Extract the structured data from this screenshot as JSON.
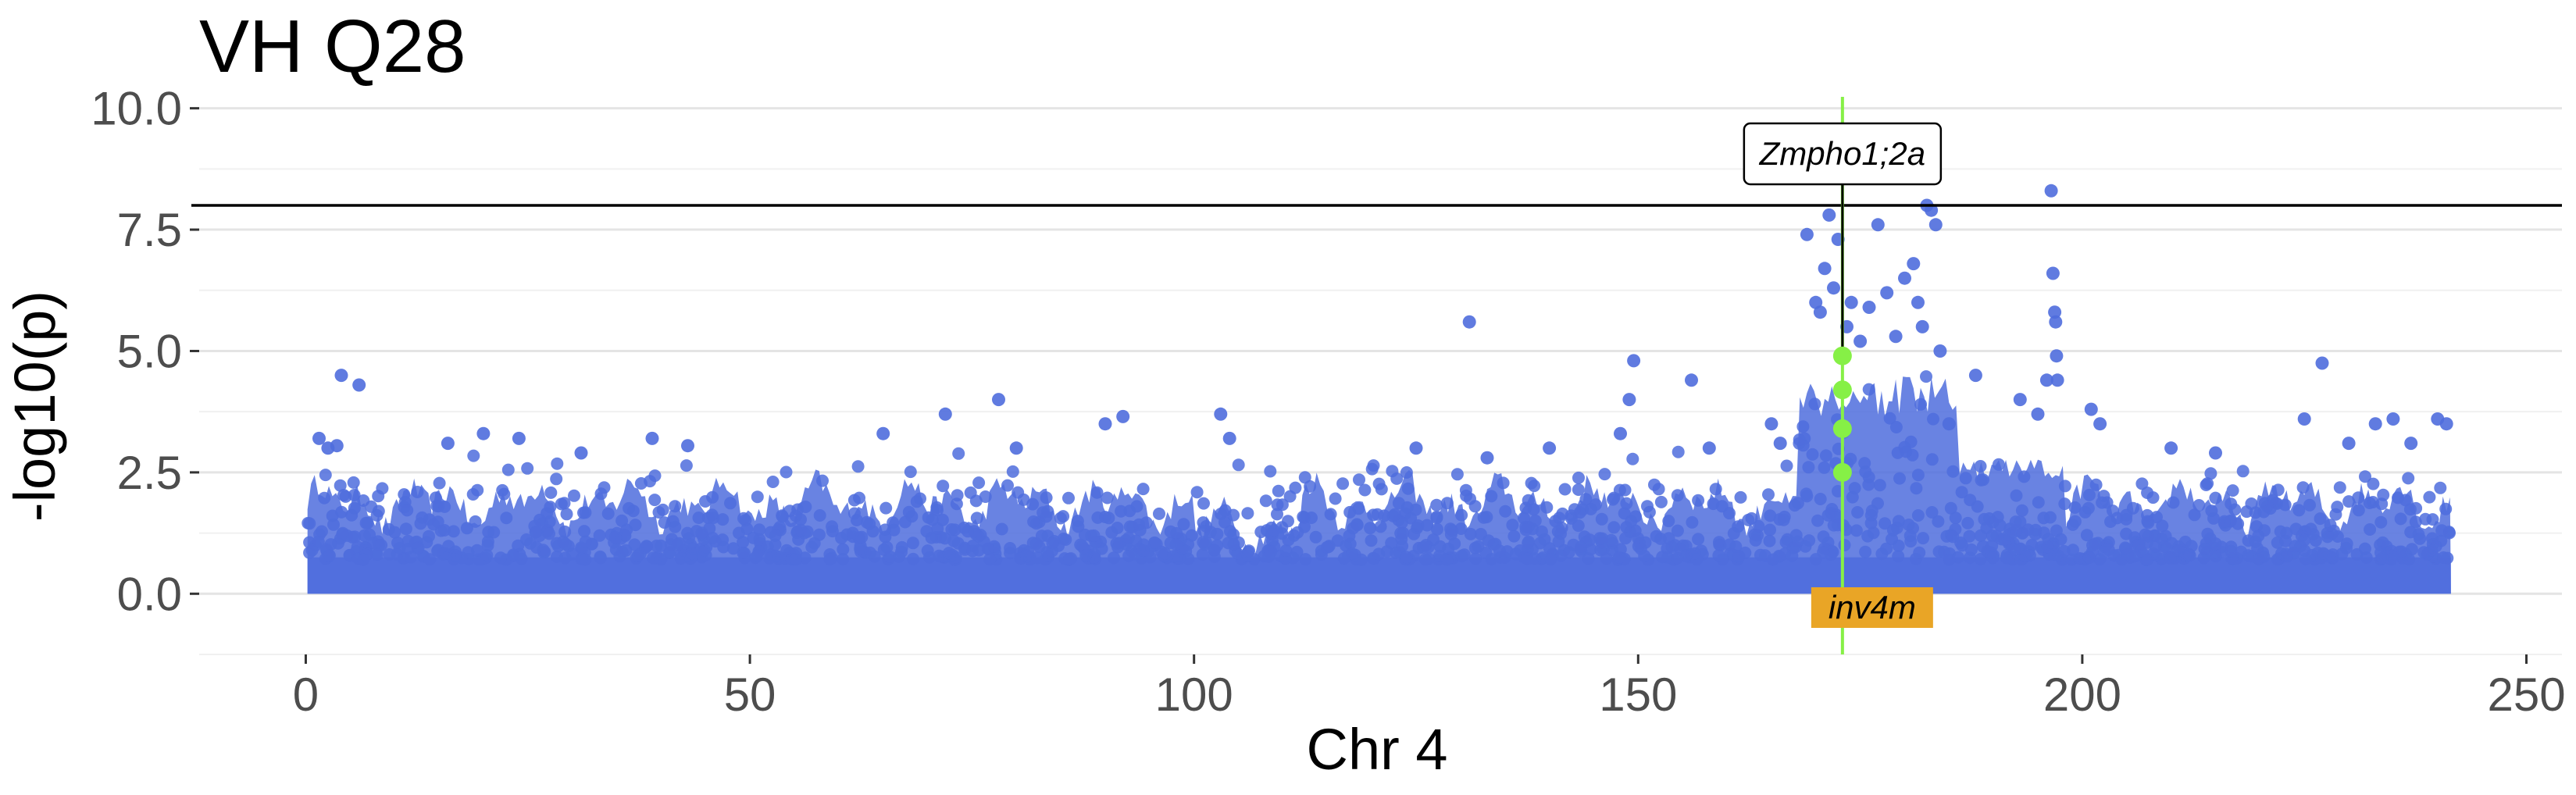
{
  "chart_data": {
    "type": "scatter",
    "title": "VH Q28",
    "xlabel": "Chr 4",
    "ylabel": "-log10(p)",
    "xlim": [
      -12,
      254
    ],
    "ylim": [
      -1.25,
      10.3
    ],
    "x_ticks": [
      0,
      50,
      100,
      150,
      200,
      250
    ],
    "y_ticks": [
      0.0,
      2.5,
      5.0,
      7.5,
      10.0
    ],
    "x_tick_labels": [
      "0",
      "50",
      "100",
      "150",
      "200",
      "250"
    ],
    "y_tick_labels": [
      "0.0",
      "2.5",
      "5.0",
      "7.5",
      "10.0"
    ],
    "grid": true,
    "threshold": 8.0,
    "point_color": "#4f6ddd",
    "highlight_color": "#86f046",
    "region": {
      "label": "inv4m",
      "x": 173,
      "color": "#e9a526"
    },
    "gene_label": {
      "label": "Zmpho1;2a",
      "x": 173,
      "y": 8.0
    },
    "highlighted_points": [
      {
        "x": 173,
        "y": 4.9
      },
      {
        "x": 173,
        "y": 4.2
      },
      {
        "x": 173,
        "y": 3.4
      },
      {
        "x": 173,
        "y": 2.5
      }
    ],
    "points": [
      [
        1.5,
        3.2
      ],
      [
        2.5,
        3.0
      ],
      [
        3.5,
        3.05
      ],
      [
        4.0,
        4.5
      ],
      [
        6.0,
        4.3
      ],
      [
        16.0,
        3.1
      ],
      [
        20.0,
        3.3
      ],
      [
        24.0,
        3.2
      ],
      [
        31.0,
        2.9
      ],
      [
        39.0,
        3.2
      ],
      [
        43.0,
        3.05
      ],
      [
        65.0,
        3.3
      ],
      [
        72.0,
        3.7
      ],
      [
        78.0,
        4.0
      ],
      [
        80.0,
        3.0
      ],
      [
        90.0,
        3.5
      ],
      [
        92.0,
        3.65
      ],
      [
        103.0,
        3.7
      ],
      [
        104.0,
        3.2
      ],
      [
        125.0,
        3.0
      ],
      [
        131.0,
        5.6
      ],
      [
        133.0,
        2.8
      ],
      [
        140.0,
        3.0
      ],
      [
        148.0,
        3.3
      ],
      [
        149.0,
        4.0
      ],
      [
        149.5,
        4.8
      ],
      [
        156.0,
        4.4
      ],
      [
        158.0,
        3.0
      ],
      [
        165.0,
        3.5
      ],
      [
        166.0,
        3.1
      ],
      [
        169.0,
        7.4
      ],
      [
        170.0,
        6.0
      ],
      [
        170.5,
        5.8
      ],
      [
        171.0,
        6.7
      ],
      [
        171.5,
        7.8
      ],
      [
        172.0,
        6.3
      ],
      [
        172.5,
        7.3
      ],
      [
        173.5,
        5.5
      ],
      [
        174.0,
        6.0
      ],
      [
        175.0,
        5.2
      ],
      [
        176.0,
        5.9
      ],
      [
        177.0,
        7.6
      ],
      [
        178.0,
        6.2
      ],
      [
        179.0,
        5.3
      ],
      [
        180.0,
        6.5
      ],
      [
        181.0,
        6.8
      ],
      [
        181.5,
        6.0
      ],
      [
        182.0,
        5.5
      ],
      [
        182.5,
        8.0
      ],
      [
        183.0,
        7.9
      ],
      [
        183.5,
        7.6
      ],
      [
        184.0,
        5.0
      ],
      [
        185.0,
        3.5
      ],
      [
        188.0,
        4.5
      ],
      [
        193.0,
        4.0
      ],
      [
        195.0,
        3.7
      ],
      [
        196.0,
        4.4
      ],
      [
        196.5,
        8.3
      ],
      [
        196.7,
        6.6
      ],
      [
        196.9,
        5.8
      ],
      [
        197.0,
        5.6
      ],
      [
        197.1,
        4.9
      ],
      [
        197.2,
        4.4
      ],
      [
        201.0,
        3.8
      ],
      [
        202.0,
        3.5
      ],
      [
        210.0,
        3.0
      ],
      [
        215.0,
        2.9
      ],
      [
        225.0,
        3.6
      ],
      [
        227.0,
        4.75
      ],
      [
        230.0,
        3.1
      ],
      [
        233.0,
        3.5
      ],
      [
        235.0,
        3.6
      ],
      [
        237.0,
        3.1
      ],
      [
        240.0,
        3.6
      ],
      [
        241.0,
        3.5
      ]
    ]
  }
}
